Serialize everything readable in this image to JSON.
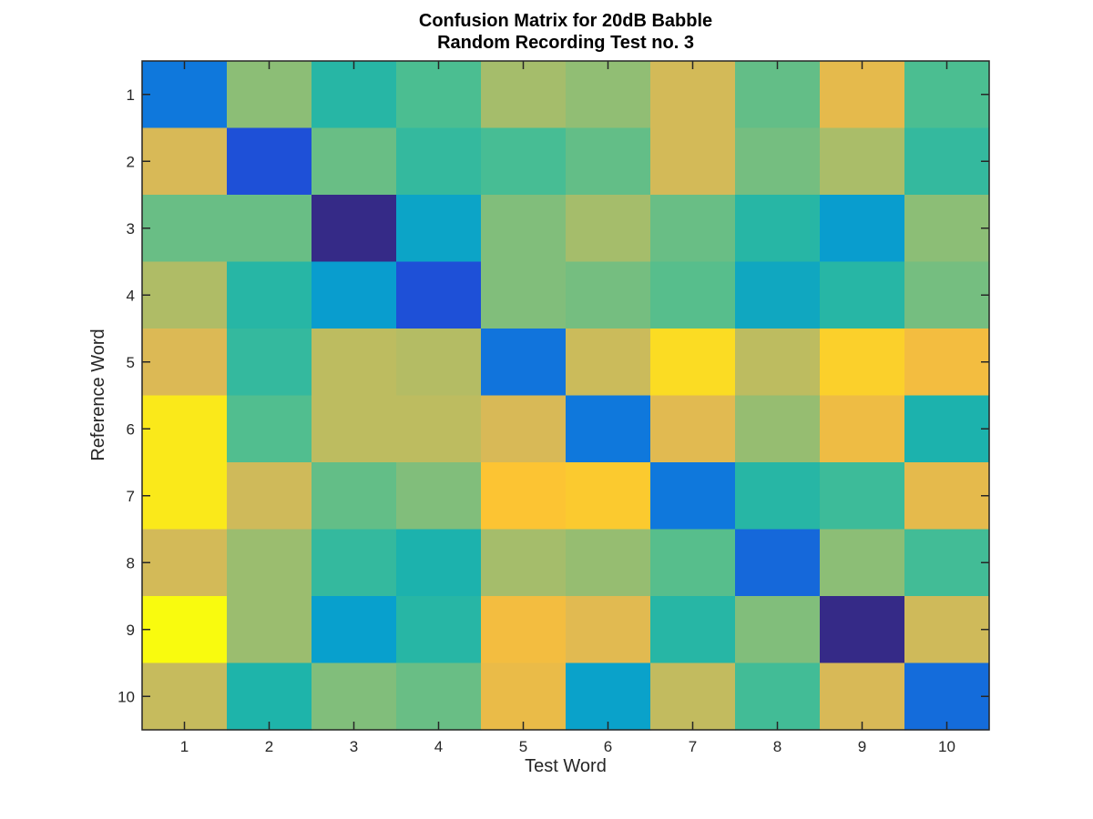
{
  "chart_data": {
    "type": "heatmap",
    "title": [
      "Confusion Matrix for 20dB Babble",
      "Random Recording Test no. 3"
    ],
    "xlabel": "Test Word",
    "ylabel": "Reference Word",
    "x_categories": [
      "1",
      "2",
      "3",
      "4",
      "5",
      "6",
      "7",
      "8",
      "9",
      "10"
    ],
    "y_categories": [
      "1",
      "2",
      "3",
      "4",
      "5",
      "6",
      "7",
      "8",
      "9",
      "10"
    ],
    "colormap": "parula",
    "values": [
      [
        0.22,
        0.66,
        0.47,
        0.55,
        0.71,
        0.67,
        0.81,
        0.59,
        0.85,
        0.55
      ],
      [
        0.82,
        0.12,
        0.6,
        0.5,
        0.54,
        0.59,
        0.81,
        0.62,
        0.72,
        0.5
      ],
      [
        0.6,
        0.6,
        0.0,
        0.36,
        0.64,
        0.71,
        0.6,
        0.47,
        0.33,
        0.66
      ],
      [
        0.73,
        0.47,
        0.33,
        0.12,
        0.64,
        0.62,
        0.57,
        0.38,
        0.47,
        0.62
      ],
      [
        0.83,
        0.5,
        0.76,
        0.74,
        0.21,
        0.79,
        0.95,
        0.76,
        0.93,
        0.88
      ],
      [
        0.97,
        0.56,
        0.76,
        0.76,
        0.82,
        0.22,
        0.84,
        0.68,
        0.87,
        0.44
      ],
      [
        0.97,
        0.8,
        0.59,
        0.64,
        0.91,
        0.92,
        0.22,
        0.47,
        0.52,
        0.85
      ],
      [
        0.81,
        0.69,
        0.5,
        0.44,
        0.71,
        0.68,
        0.57,
        0.18,
        0.66,
        0.53
      ],
      [
        1.0,
        0.69,
        0.34,
        0.47,
        0.88,
        0.84,
        0.47,
        0.64,
        0.0,
        0.8
      ],
      [
        0.78,
        0.45,
        0.64,
        0.6,
        0.86,
        0.35,
        0.77,
        0.53,
        0.82,
        0.19
      ]
    ]
  }
}
